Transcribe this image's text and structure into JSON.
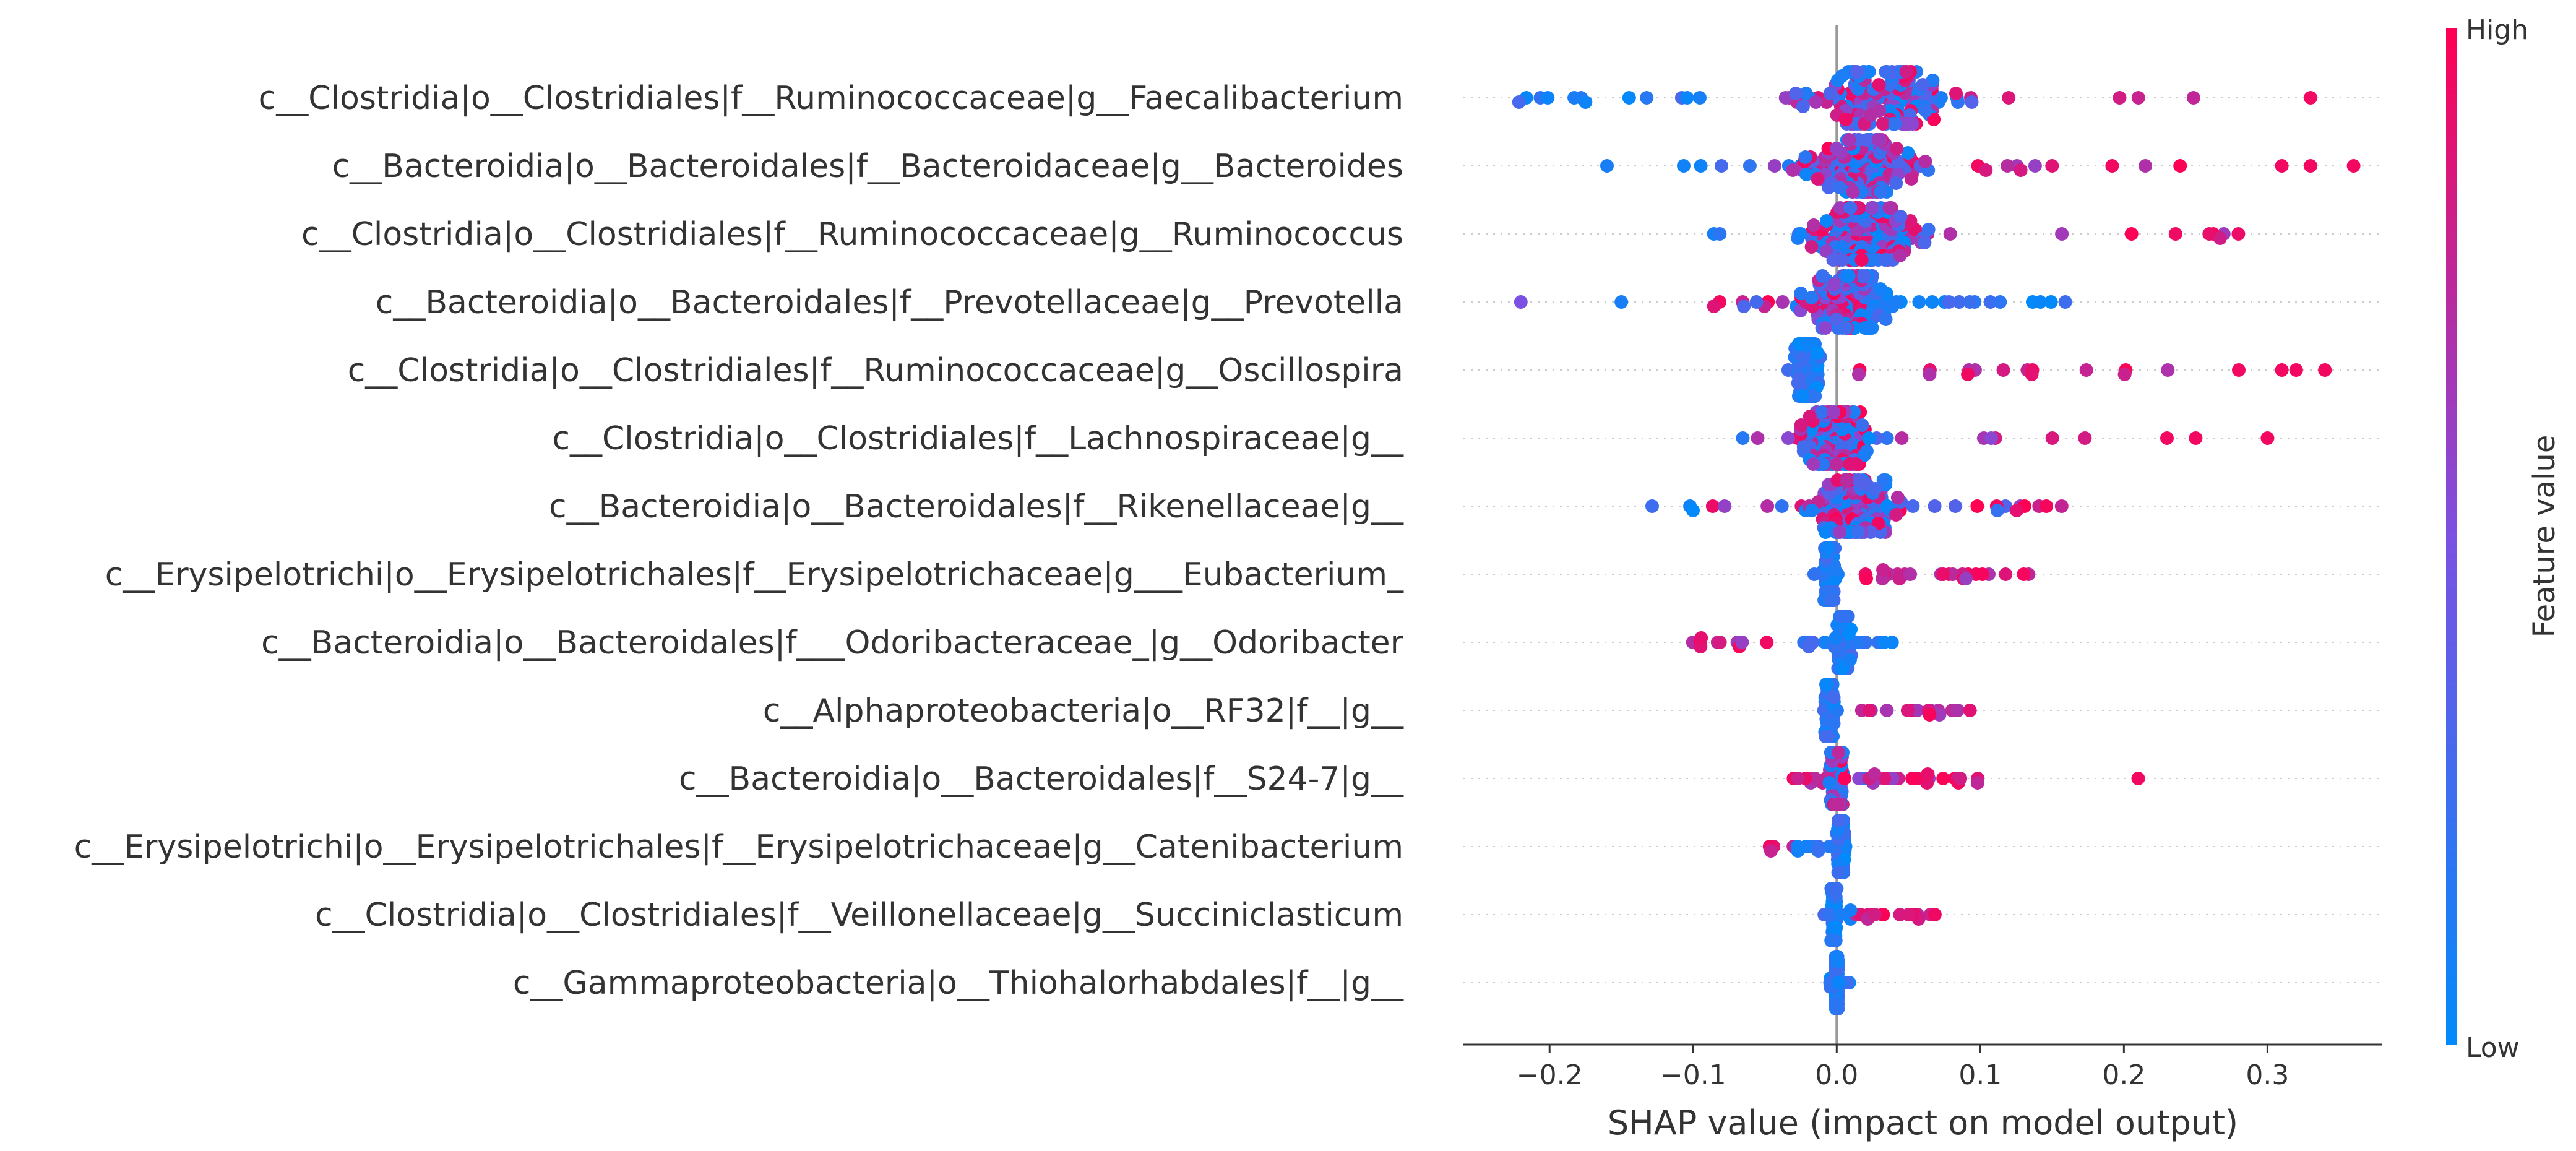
{
  "chart_data": {
    "type": "scatter",
    "subtype": "shap-beeswarm",
    "features": [
      {
        "label": "c__Clostridia|o__Clostridiales|f__Ruminococcaceae|g__Faecalibacterium",
        "min": -0.23,
        "max": 0.26,
        "center": 0.03,
        "spread": 0.085,
        "low_min": -0.23,
        "low_max": 0.12,
        "high_min": -0.05,
        "high_max": 0.26,
        "outliers": [
          {
            "x": 0.33,
            "level": 0.95
          }
        ]
      },
      {
        "label": "c__Bacteroidia|o__Bacteroidales|f__Bacteroidaceae|g__Bacteroides",
        "min": -0.13,
        "max": 0.24,
        "center": 0.02,
        "spread": 0.07,
        "low_min": -0.13,
        "low_max": 0.08,
        "high_min": -0.05,
        "high_max": 0.24,
        "outliers": [
          {
            "x": -0.16,
            "level": 0.1
          },
          {
            "x": 0.31,
            "level": 0.95
          },
          {
            "x": 0.33,
            "level": 0.95
          },
          {
            "x": 0.36,
            "level": 0.95
          }
        ]
      },
      {
        "label": "c__Clostridia|o__Clostridiales|f__Ruminococcaceae|g__Ruminococcus",
        "min": -0.11,
        "max": 0.28,
        "center": 0.02,
        "spread": 0.07,
        "low_min": -0.11,
        "low_max": 0.1,
        "high_min": -0.02,
        "high_max": 0.28,
        "outliers": []
      },
      {
        "label": "c__Bacteroidia|o__Bacteroidales|f__Prevotellaceae|g__Prevotella",
        "min": -0.12,
        "max": 0.17,
        "center": 0.01,
        "spread": 0.055,
        "low_min": -0.08,
        "low_max": 0.17,
        "high_min": -0.12,
        "high_max": 0.02,
        "outliers": [
          {
            "x": -0.22,
            "level": 0.5
          },
          {
            "x": -0.15,
            "level": 0.1
          }
        ]
      },
      {
        "label": "c__Clostridia|o__Clostridiales|f__Ruminococcaceae|g__Oscillospira",
        "min": -0.05,
        "max": 0.25,
        "center": -0.02,
        "spread": 0.012,
        "low_min": -0.05,
        "low_max": 0.0,
        "high_min": 0.0,
        "high_max": 0.25,
        "outliers": [
          {
            "x": 0.28,
            "level": 0.95
          },
          {
            "x": 0.31,
            "level": 0.95
          },
          {
            "x": 0.32,
            "level": 0.95
          },
          {
            "x": 0.34,
            "level": 0.95
          }
        ]
      },
      {
        "label": "c__Clostridia|o__Clostridiales|f__Lachnospiraceae|g__",
        "min": -0.1,
        "max": 0.18,
        "center": 0.0,
        "spread": 0.045,
        "low_min": -0.1,
        "low_max": 0.15,
        "high_min": -0.06,
        "high_max": 0.18,
        "outliers": [
          {
            "x": 0.23,
            "level": 0.95
          },
          {
            "x": 0.25,
            "level": 0.95
          },
          {
            "x": 0.3,
            "level": 0.95
          }
        ]
      },
      {
        "label": "c__Bacteroidia|o__Bacteroidales|f__Rikenellaceae|g__",
        "min": -0.14,
        "max": 0.16,
        "center": 0.01,
        "spread": 0.045,
        "low_min": -0.14,
        "low_max": 0.12,
        "high_min": -0.1,
        "high_max": 0.16,
        "outliers": []
      },
      {
        "label": "c__Erysipelotrichi|o__Erysipelotrichales|f__Erysipelotrichaceae|g___Eubacterium_",
        "min": -0.02,
        "max": 0.14,
        "center": -0.005,
        "spread": 0.006,
        "low_min": -0.02,
        "low_max": 0.0,
        "high_min": 0.01,
        "high_max": 0.14,
        "outliers": []
      },
      {
        "label": "c__Bacteroidia|o__Bacteroidales|f___Odoribacteraceae_|g__Odoribacter",
        "min": -0.12,
        "max": 0.04,
        "center": 0.005,
        "spread": 0.008,
        "low_min": 0.0,
        "low_max": 0.04,
        "high_min": -0.12,
        "high_max": -0.04,
        "outliers": []
      },
      {
        "label": "c__Alphaproteobacteria|o__RF32|f__|g__",
        "min": -0.01,
        "max": 0.1,
        "center": -0.005,
        "spread": 0.005,
        "low_min": -0.01,
        "low_max": 0.0,
        "high_min": 0.01,
        "high_max": 0.1,
        "outliers": []
      },
      {
        "label": "c__Bacteroidia|o__Bacteroidales|f__S24-7|g__",
        "min": -0.05,
        "max": 0.1,
        "center": 0.0,
        "spread": 0.008,
        "low_min": -0.015,
        "low_max": 0.02,
        "high_min": -0.05,
        "high_max": 0.1,
        "outliers": [
          {
            "x": 0.21,
            "level": 0.95
          }
        ]
      },
      {
        "label": "c__Erysipelotrichi|o__Erysipelotrichales|f__Erysipelotrichaceae|g__Catenibacterium",
        "min": -0.05,
        "max": 0.01,
        "center": 0.003,
        "spread": 0.004,
        "low_min": -0.005,
        "low_max": 0.01,
        "high_min": -0.05,
        "high_max": -0.03,
        "outliers": []
      },
      {
        "label": "c__Clostridia|o__Clostridiales|f__Veillonellaceae|g__Succiniclasticum",
        "min": -0.01,
        "max": 0.08,
        "center": -0.002,
        "spread": 0.003,
        "low_min": -0.01,
        "low_max": 0.005,
        "high_min": 0.01,
        "high_max": 0.08,
        "outliers": []
      },
      {
        "label": "c__Gammaproteobacteria|o__Thiohalorhabdales|f__|g__",
        "min": -0.005,
        "max": 0.01,
        "center": 0.0,
        "spread": 0.002,
        "low_min": -0.005,
        "low_max": 0.01,
        "high_min": 0.0,
        "high_max": 0.0,
        "outliers": []
      }
    ],
    "xlabel": "SHAP value (impact on model output)",
    "xlim": [
      -0.26,
      0.38
    ],
    "xticks": [
      -0.2,
      -0.1,
      0.0,
      0.1,
      0.2,
      0.3
    ],
    "xtick_labels": [
      "−0.2",
      "−0.1",
      "0.0",
      "0.1",
      "0.2",
      "0.3"
    ],
    "colorbar": {
      "label": "Feature value",
      "high_label": "High",
      "low_label": "Low",
      "low_color": "#008afb",
      "mid_color": "#7b50e2",
      "high_color": "#ff0052"
    },
    "zero_line_color": "#999999",
    "row_line_color": "#cccccc"
  }
}
